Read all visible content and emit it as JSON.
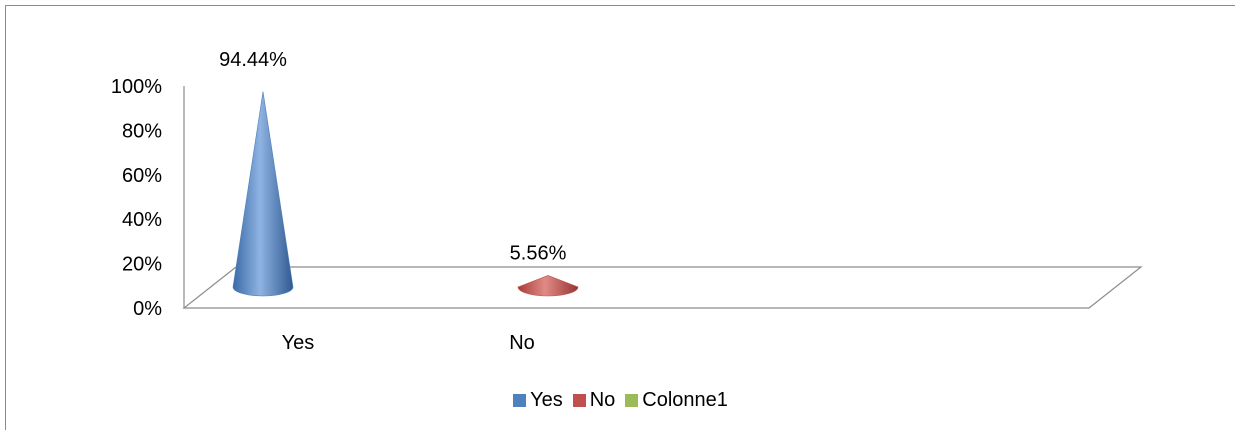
{
  "chart_data": {
    "type": "bar",
    "bar_shape": "cone-3d",
    "categories": [
      "Yes",
      "No"
    ],
    "series": [
      {
        "name": "Yes",
        "values": [
          94.44,
          null
        ],
        "color": "#4f81bd"
      },
      {
        "name": "No",
        "values": [
          null,
          5.56
        ],
        "color": "#c0504d"
      },
      {
        "name": "Colonne1",
        "values": [
          null,
          null
        ],
        "color": "#9bbb59"
      }
    ],
    "data_labels": [
      "94.44%",
      "5.56%"
    ],
    "y_ticks": [
      "0%",
      "20%",
      "40%",
      "60%",
      "80%",
      "100%"
    ],
    "ylim": [
      0,
      100
    ],
    "unit": "%",
    "grid": false,
    "legend": "bottom"
  }
}
